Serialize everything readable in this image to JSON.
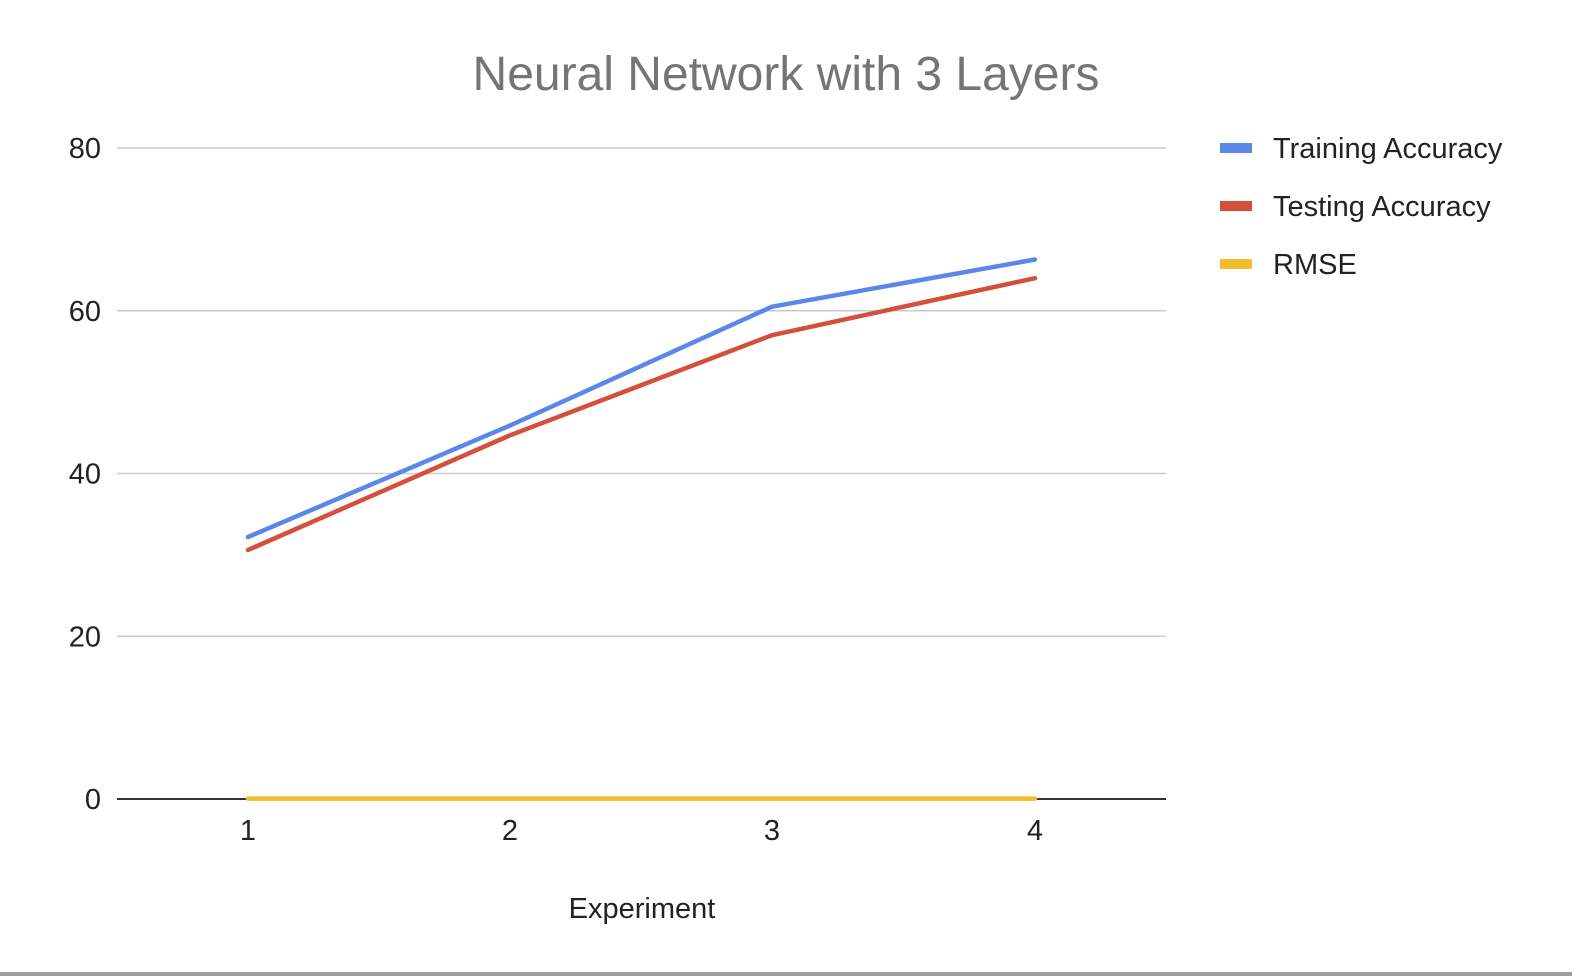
{
  "chart_data": {
    "type": "line",
    "title": "Neural Network with 3 Layers",
    "xlabel": "Experiment",
    "ylabel": "",
    "x": [
      1,
      2,
      3,
      4
    ],
    "ylim": [
      0,
      80
    ],
    "yticks": [
      0,
      20,
      40,
      60,
      80
    ],
    "grid": true,
    "legend_position": "right",
    "series": [
      {
        "name": "Training Accuracy",
        "color": "#5b87e8",
        "values": [
          32.2,
          45.9,
          60.5,
          66.3
        ]
      },
      {
        "name": "Testing Accuracy",
        "color": "#d4503a",
        "values": [
          30.6,
          44.7,
          57.0,
          64.0
        ]
      },
      {
        "name": "RMSE",
        "color": "#f0bd2d",
        "values": [
          0.05,
          0.05,
          0.05,
          0.05
        ]
      }
    ]
  }
}
